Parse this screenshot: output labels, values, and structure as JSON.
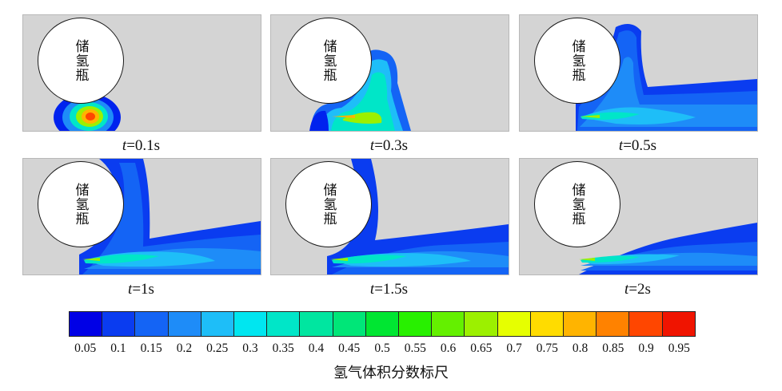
{
  "tank_label": "储氢瓶",
  "panels": [
    {
      "time_prefix": "t",
      "time_value": "=0.1s"
    },
    {
      "time_prefix": "t",
      "time_value": "=0.3s"
    },
    {
      "time_prefix": "t",
      "time_value": "=0.5s"
    },
    {
      "time_prefix": "t",
      "time_value": "=1s"
    },
    {
      "time_prefix": "t",
      "time_value": "=1.5s"
    },
    {
      "time_prefix": "t",
      "time_value": "=2s"
    }
  ],
  "colorbar": {
    "title": "氢气体积分数标尺",
    "ticks": [
      "0.05",
      "0.1",
      "0.15",
      "0.2",
      "0.25",
      "0.3",
      "0.35",
      "0.4",
      "0.45",
      "0.5",
      "0.55",
      "0.6",
      "0.65",
      "0.7",
      "0.75",
      "0.8",
      "0.85",
      "0.9",
      "0.95"
    ],
    "colors": [
      "#0000e6",
      "#0a3cf0",
      "#1464f5",
      "#1e8cf8",
      "#1ebef8",
      "#00e6f0",
      "#00e6c8",
      "#00e6a0",
      "#00e678",
      "#00e632",
      "#28f000",
      "#64f000",
      "#9cf000",
      "#e6ff00",
      "#ffdc00",
      "#ffb400",
      "#ff8200",
      "#ff4600",
      "#f01400"
    ]
  }
}
